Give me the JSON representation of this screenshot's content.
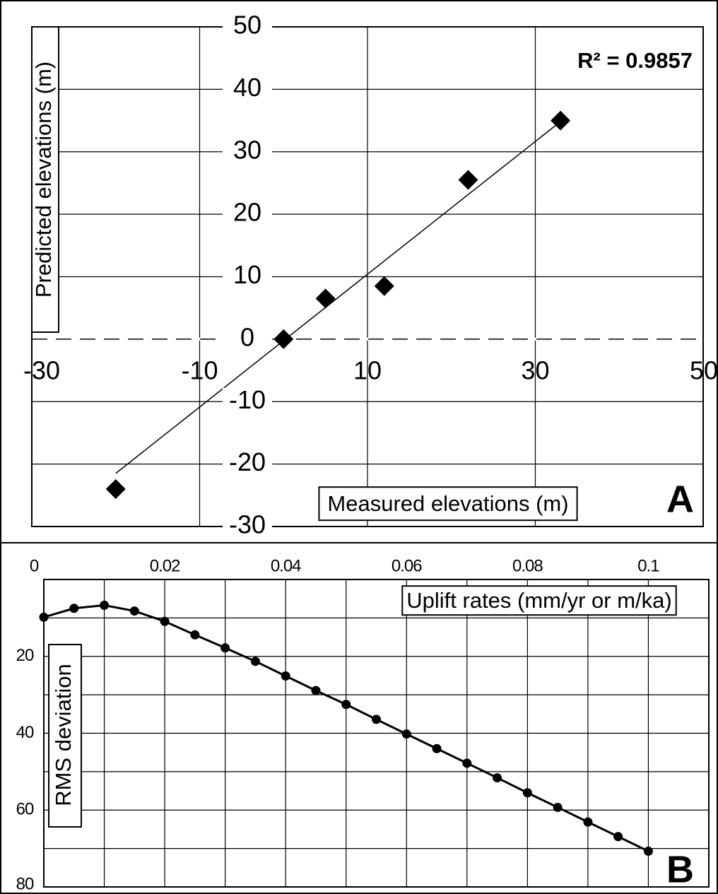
{
  "chart_data": [
    {
      "type": "scatter",
      "panel_label": "A",
      "x_label": "Measured elevations (m)",
      "y_label": "Predicted elevations (m)",
      "annotation": "R² = 0.9857",
      "color": "#000000",
      "xlim": [
        -30,
        50
      ],
      "ylim": [
        -30,
        50
      ],
      "xticks": [
        -30,
        -10,
        10,
        30,
        50
      ],
      "yticks": [
        -30,
        -20,
        -10,
        0,
        10,
        20,
        30,
        40,
        50
      ],
      "grid": true,
      "reference_lines": [
        {
          "y": 0,
          "style": "dashed"
        }
      ],
      "x": [
        -20,
        0,
        5,
        12,
        22,
        33
      ],
      "values": [
        -24,
        0,
        6.5,
        8.5,
        25.5,
        35
      ],
      "trendline": {
        "x": [
          -20,
          32.4
        ],
        "values": [
          -21.5,
          34.2
        ]
      }
    },
    {
      "type": "line",
      "panel_label": "B",
      "x_label": "Uplift rates (mm/yr or m/ka)",
      "y_label": "RMS deviation",
      "color": "#000000",
      "markers": true,
      "y_inverted": true,
      "xlim": [
        0,
        0.11
      ],
      "ylim": [
        0,
        80
      ],
      "xticks": [
        0,
        0.02,
        0.04,
        0.06,
        0.08,
        0.1
      ],
      "minor_xticks": [
        0.01,
        0.03,
        0.05,
        0.07,
        0.09
      ],
      "yticks": [
        20,
        40,
        60,
        80
      ],
      "minor_yticks": [
        10,
        30,
        50,
        70
      ],
      "grid": true,
      "x": [
        0,
        0.005,
        0.01,
        0.015,
        0.02,
        0.025,
        0.03,
        0.035,
        0.04,
        0.045,
        0.05,
        0.055,
        0.06,
        0.065,
        0.07,
        0.075,
        0.08,
        0.085,
        0.09,
        0.095,
        0.1
      ],
      "values": [
        9.8,
        7.5,
        6.7,
        8.2,
        10.9,
        14.4,
        17.8,
        21.3,
        25.1,
        28.9,
        32.5,
        36.4,
        40.2,
        44,
        47.8,
        51.6,
        55.5,
        59.3,
        63.1,
        66.9,
        70.7
      ]
    }
  ]
}
